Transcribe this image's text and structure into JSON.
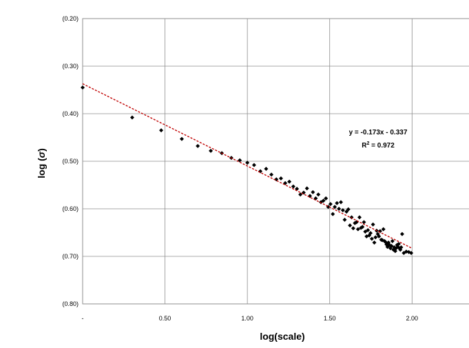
{
  "accent_color": "#1f1a8c",
  "chart_data": {
    "type": "scatter",
    "xlabel": "log(scale)",
    "ylabel_prefix": "log (",
    "ylabel_symbol": "σ",
    "ylabel_suffix": ")",
    "xlim": [
      0,
      2.35
    ],
    "ylim": [
      -0.8,
      -0.2
    ],
    "x_ticks": [
      0,
      0.5,
      1.0,
      1.5,
      2.0
    ],
    "x_tick_labels": [
      "-",
      "0.50",
      "1.00",
      "1.50",
      "2.00"
    ],
    "y_ticks": [
      -0.2,
      -0.3,
      -0.4,
      -0.5,
      -0.6,
      -0.7,
      -0.8
    ],
    "y_tick_labels": [
      "(0.20)",
      "(0.30)",
      "(0.40)",
      "(0.50)",
      "(0.60)",
      "(0.70)",
      "(0.80)"
    ],
    "grid": true,
    "marker_color": "#000000",
    "trendline": {
      "slope": -0.173,
      "intercept": -0.337,
      "color": "#c00000",
      "equation": "y = -0.173x - 0.337",
      "r2_prefix": "R",
      "r2_sup": "2",
      "r2_value": " = 0.972"
    },
    "points": [
      [
        0.0,
        -0.345
      ],
      [
        0.301,
        -0.408
      ],
      [
        0.477,
        -0.435
      ],
      [
        0.602,
        -0.453
      ],
      [
        0.699,
        -0.468
      ],
      [
        0.778,
        -0.478
      ],
      [
        0.845,
        -0.483
      ],
      [
        0.903,
        -0.493
      ],
      [
        0.954,
        -0.498
      ],
      [
        1.0,
        -0.503
      ],
      [
        1.041,
        -0.508
      ],
      [
        1.079,
        -0.521
      ],
      [
        1.114,
        -0.516
      ],
      [
        1.146,
        -0.528
      ],
      [
        1.176,
        -0.538
      ],
      [
        1.204,
        -0.536
      ],
      [
        1.23,
        -0.546
      ],
      [
        1.255,
        -0.543
      ],
      [
        1.279,
        -0.553
      ],
      [
        1.301,
        -0.558
      ],
      [
        1.322,
        -0.57
      ],
      [
        1.342,
        -0.566
      ],
      [
        1.362,
        -0.557
      ],
      [
        1.38,
        -0.573
      ],
      [
        1.398,
        -0.565
      ],
      [
        1.415,
        -0.578
      ],
      [
        1.431,
        -0.57
      ],
      [
        1.447,
        -0.586
      ],
      [
        1.462,
        -0.583
      ],
      [
        1.477,
        -0.578
      ],
      [
        1.491,
        -0.596
      ],
      [
        1.505,
        -0.59
      ],
      [
        1.519,
        -0.611
      ],
      [
        1.531,
        -0.596
      ],
      [
        1.544,
        -0.588
      ],
      [
        1.556,
        -0.6
      ],
      [
        1.568,
        -0.586
      ],
      [
        1.58,
        -0.603
      ],
      [
        1.591,
        -0.623
      ],
      [
        1.602,
        -0.606
      ],
      [
        1.613,
        -0.601
      ],
      [
        1.623,
        -0.635
      ],
      [
        1.633,
        -0.618
      ],
      [
        1.643,
        -0.641
      ],
      [
        1.653,
        -0.63
      ],
      [
        1.663,
        -0.628
      ],
      [
        1.672,
        -0.643
      ],
      [
        1.681,
        -0.618
      ],
      [
        1.69,
        -0.64
      ],
      [
        1.699,
        -0.638
      ],
      [
        1.708,
        -0.628
      ],
      [
        1.716,
        -0.648
      ],
      [
        1.724,
        -0.658
      ],
      [
        1.732,
        -0.645
      ],
      [
        1.74,
        -0.656
      ],
      [
        1.748,
        -0.651
      ],
      [
        1.756,
        -0.663
      ],
      [
        1.763,
        -0.633
      ],
      [
        1.771,
        -0.671
      ],
      [
        1.778,
        -0.66
      ],
      [
        1.785,
        -0.646
      ],
      [
        1.792,
        -0.653
      ],
      [
        1.799,
        -0.658
      ],
      [
        1.806,
        -0.647
      ],
      [
        1.813,
        -0.665
      ],
      [
        1.82,
        -0.666
      ],
      [
        1.826,
        -0.643
      ],
      [
        1.833,
        -0.668
      ],
      [
        1.839,
        -0.67
      ],
      [
        1.845,
        -0.675
      ],
      [
        1.851,
        -0.68
      ],
      [
        1.857,
        -0.671
      ],
      [
        1.863,
        -0.676
      ],
      [
        1.869,
        -0.683
      ],
      [
        1.875,
        -0.678
      ],
      [
        1.881,
        -0.668
      ],
      [
        1.887,
        -0.686
      ],
      [
        1.892,
        -0.681
      ],
      [
        1.898,
        -0.689
      ],
      [
        1.903,
        -0.683
      ],
      [
        1.909,
        -0.676
      ],
      [
        1.914,
        -0.68
      ],
      [
        1.919,
        -0.674
      ],
      [
        1.924,
        -0.683
      ],
      [
        1.929,
        -0.686
      ],
      [
        1.934,
        -0.681
      ],
      [
        1.94,
        -0.653
      ],
      [
        1.95,
        -0.693
      ],
      [
        1.965,
        -0.69
      ],
      [
        1.98,
        -0.691
      ],
      [
        1.995,
        -0.693
      ]
    ]
  }
}
